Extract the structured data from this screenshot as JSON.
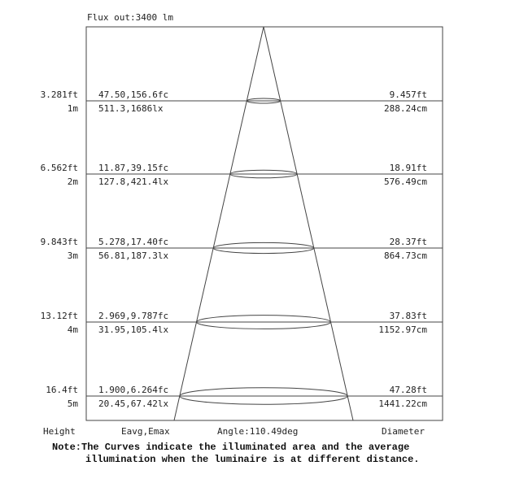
{
  "header": {
    "flux_label": "Flux out:3400 lm"
  },
  "rows": [
    {
      "height_ft": "3.281ft",
      "height_m": "1m",
      "illum_fc": "47.50,156.6fc",
      "illum_lx": "511.3,1686lx",
      "diam_ft": "9.457ft",
      "diam_cm": "288.24cm"
    },
    {
      "height_ft": "6.562ft",
      "height_m": "2m",
      "illum_fc": "11.87,39.15fc",
      "illum_lx": "127.8,421.4lx",
      "diam_ft": "18.91ft",
      "diam_cm": "576.49cm"
    },
    {
      "height_ft": "9.843ft",
      "height_m": "3m",
      "illum_fc": "5.278,17.40fc",
      "illum_lx": "56.81,187.3lx",
      "diam_ft": "28.37ft",
      "diam_cm": "864.73cm"
    },
    {
      "height_ft": "13.12ft",
      "height_m": "4m",
      "illum_fc": "2.969,9.787fc",
      "illum_lx": "31.95,105.4lx",
      "diam_ft": "37.83ft",
      "diam_cm": "1152.97cm"
    },
    {
      "height_ft": "16.4ft",
      "height_m": "5m",
      "illum_fc": "1.900,6.264fc",
      "illum_lx": "20.45,67.42lx",
      "diam_ft": "47.28ft",
      "diam_cm": "1441.22cm"
    }
  ],
  "footer": {
    "height_label": "Height",
    "eavg_label": "Eavg,Emax",
    "angle_label": "Angle:110.49deg",
    "diameter_label": "Diameter"
  },
  "note": {
    "line1": "Note:The Curves indicate the illuminated area and the average",
    "line2": "illumination when the luminaire is at different distance."
  }
}
